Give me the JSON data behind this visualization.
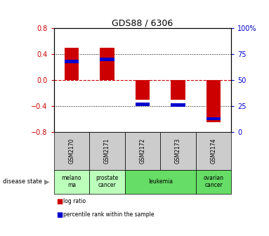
{
  "title": "GDS88 / 6306",
  "samples": [
    "GSM2170",
    "GSM2171",
    "GSM2172",
    "GSM2173",
    "GSM2174"
  ],
  "log_ratio": [
    0.5,
    0.5,
    -0.3,
    -0.3,
    -0.65
  ],
  "percentile_rank": [
    68,
    70,
    27,
    26,
    13
  ],
  "ylim_left": [
    -0.8,
    0.8
  ],
  "ylim_right": [
    0,
    100
  ],
  "yticks_left": [
    -0.8,
    -0.4,
    0.0,
    0.4,
    0.8
  ],
  "yticks_right": [
    0,
    25,
    50,
    75,
    100
  ],
  "bar_color_red": "#cc0000",
  "bar_color_blue": "#0000cc",
  "red_bar_width": 0.4,
  "blue_bar_width": 0.4,
  "blue_bar_height": 0.05,
  "disease_states": [
    {
      "label": "melano\nma",
      "samples": [
        "GSM2170"
      ],
      "color": "#bbffbb"
    },
    {
      "label": "prostate\ncancer",
      "samples": [
        "GSM2171"
      ],
      "color": "#bbffbb"
    },
    {
      "label": "leukemia",
      "samples": [
        "GSM2172",
        "GSM2173"
      ],
      "color": "#66dd66"
    },
    {
      "label": "ovarian\ncancer",
      "samples": [
        "GSM2174"
      ],
      "color": "#66dd66"
    }
  ],
  "tick_color_left": "#cc0000",
  "tick_color_right": "#0000cc",
  "grid_color": "#000000",
  "zero_line_color": "#cc0000",
  "legend_items": [
    {
      "label": "log ratio",
      "color": "#cc0000"
    },
    {
      "label": "percentile rank within the sample",
      "color": "#0000cc"
    }
  ],
  "disease_label": "disease state",
  "sample_box_color": "#cccccc"
}
